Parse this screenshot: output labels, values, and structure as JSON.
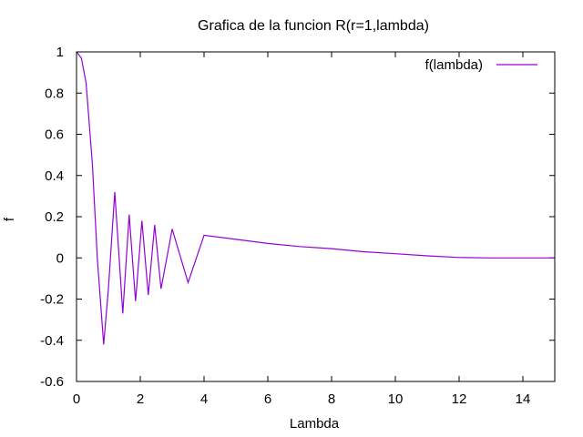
{
  "chart_data": {
    "type": "line",
    "title": "Grafica de la funcion R(r=1,lambda)",
    "xlabel": "Lambda",
    "ylabel": "f",
    "xlim": [
      0,
      15
    ],
    "ylim": [
      -0.6,
      1
    ],
    "xticks": [
      "0",
      "2",
      "4",
      "6",
      "8",
      "10",
      "12",
      "14"
    ],
    "yticks": [
      "-0.6",
      "-0.4",
      "-0.2",
      "0",
      "0.2",
      "0.4",
      "0.6",
      "0.8",
      "1"
    ],
    "grid": false,
    "legend_position": "top-right",
    "series": [
      {
        "name": "f(lambda)",
        "color": "#9400d3",
        "points": [
          [
            0,
            1
          ],
          [
            0.15,
            0.97
          ],
          [
            0.3,
            0.85
          ],
          [
            0.5,
            0.45
          ],
          [
            0.65,
            0.0
          ],
          [
            0.85,
            -0.42
          ],
          [
            1.0,
            -0.15
          ],
          [
            1.2,
            0.32
          ],
          [
            1.45,
            -0.27
          ],
          [
            1.65,
            0.21
          ],
          [
            1.85,
            -0.21
          ],
          [
            2.05,
            0.18
          ],
          [
            2.25,
            -0.18
          ],
          [
            2.45,
            0.16
          ],
          [
            2.65,
            -0.15
          ],
          [
            3.0,
            0.14
          ],
          [
            3.5,
            -0.12
          ],
          [
            4.0,
            0.11
          ],
          [
            5.0,
            0.09
          ],
          [
            6.0,
            0.07
          ],
          [
            7.0,
            0.055
          ],
          [
            8.0,
            0.045
          ],
          [
            9.0,
            0.03
          ],
          [
            10.0,
            0.02
          ],
          [
            11.0,
            0.01
          ],
          [
            12.0,
            0.002
          ],
          [
            13.0,
            0.0
          ],
          [
            15.0,
            0.0
          ]
        ]
      }
    ]
  }
}
